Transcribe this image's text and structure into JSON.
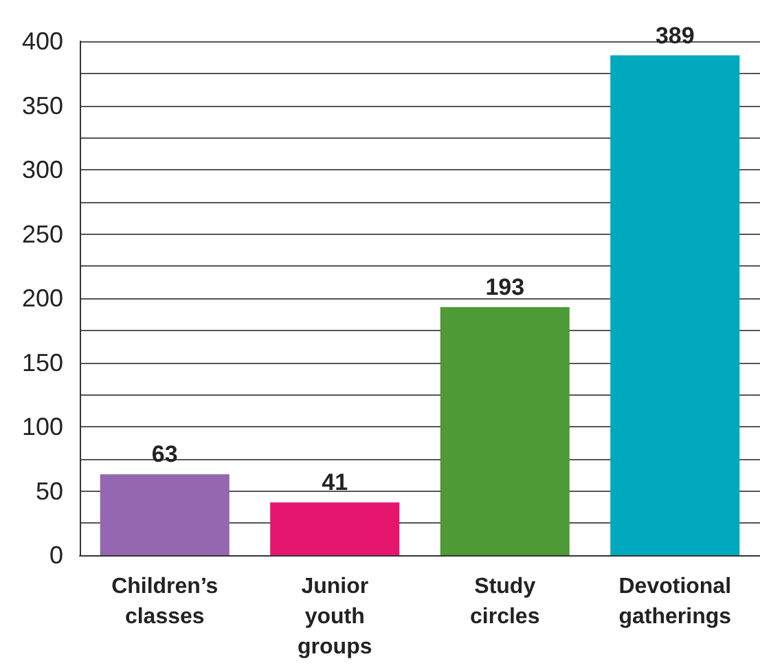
{
  "chart_data": {
    "type": "bar",
    "categories": [
      "Children’s\nclasses",
      "Junior\nyouth\ngroups",
      "Study\ncircles",
      "Devotional\ngatherings"
    ],
    "values": [
      63,
      41,
      193,
      389
    ],
    "colors": [
      "#9467b0",
      "#e6156e",
      "#4e9a36",
      "#00a9bd"
    ],
    "ylim": [
      0,
      400
    ],
    "yticks": [
      0,
      {
        "value": 25,
        "label": null
      },
      50,
      {
        "value": 75,
        "label": null
      },
      100,
      {
        "value": 125,
        "label": null
      },
      150,
      {
        "value": 175,
        "label": null
      },
      200,
      {
        "value": 225,
        "label": null
      },
      250,
      {
        "value": 275,
        "label": null
      },
      300,
      {
        "value": 325,
        "label": null
      },
      350,
      {
        "value": 375,
        "label": null
      },
      400
    ],
    "grid": "y",
    "data_labels": true
  }
}
